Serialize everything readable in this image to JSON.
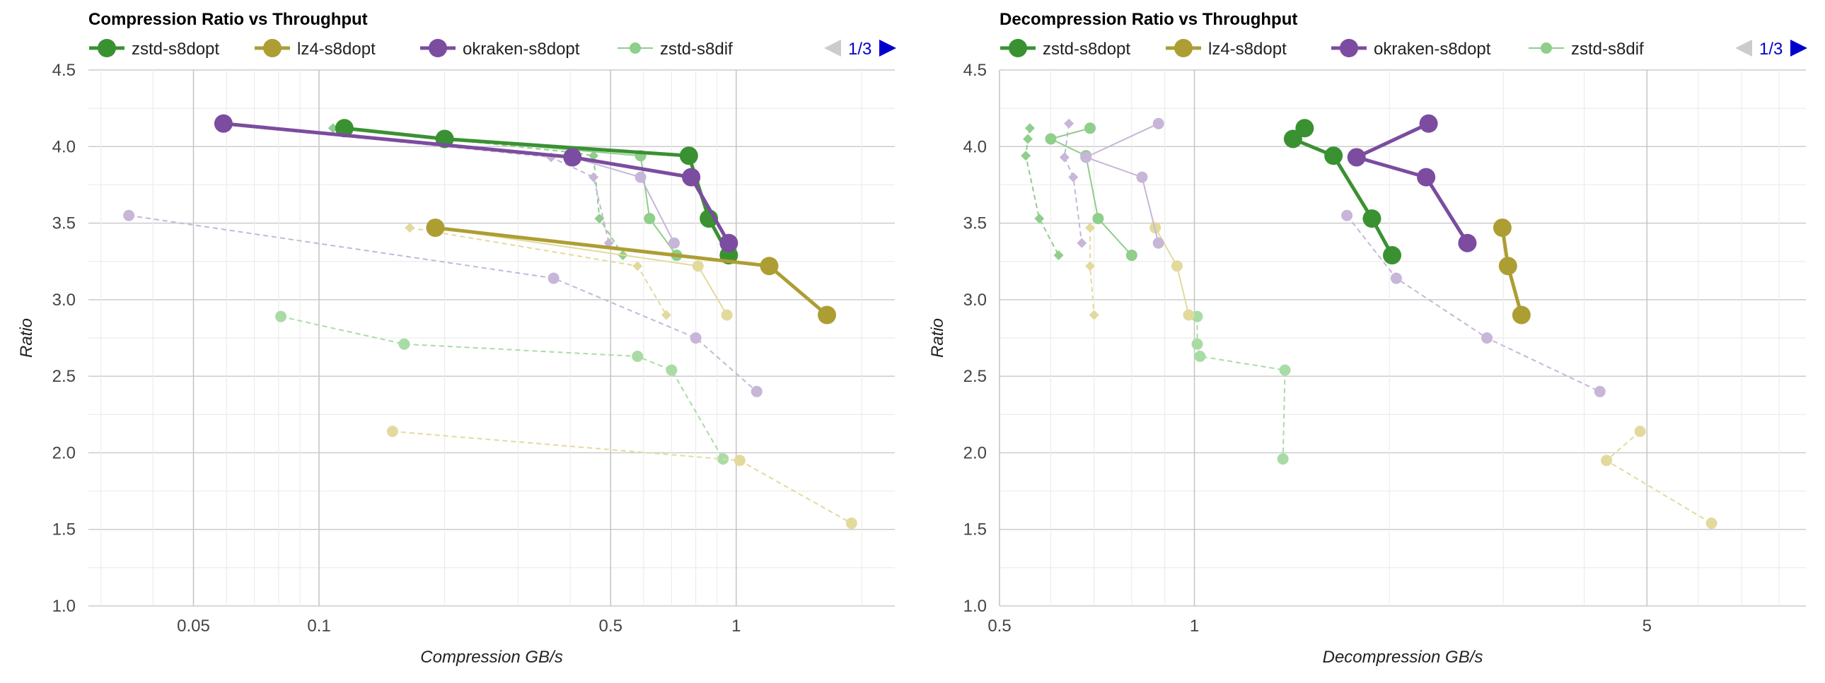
{
  "colors": {
    "zstd-s8dopt": "#3a9132",
    "lz4-s8dopt": "#ad9e34",
    "okraken-s8dopt": "#7b4c9f",
    "zstd-s8dif": "#8fce8b",
    "lz4-faint": "#e2da9c",
    "okraken-faint": "#c7b6d8",
    "zstd-faint": "#a9dca5",
    "pager-prev": "#cccccc",
    "pager-next": "#0000cc"
  },
  "chart_data": [
    {
      "type": "scatter",
      "title": "Compression Ratio vs Throughput",
      "xlabel": "Compression GB/s",
      "ylabel": "Ratio",
      "xscale": "log",
      "xlim": [
        0.028,
        2.4
      ],
      "ylim": [
        1.0,
        4.5
      ],
      "xticks": [
        "0.05",
        "0.1",
        "0.5",
        "1"
      ],
      "yticks": [
        "1.0",
        "1.5",
        "2.0",
        "2.5",
        "3.0",
        "3.5",
        "4.0",
        "4.5"
      ],
      "grid": true,
      "legend": "top",
      "legend_entries": [
        "zstd-s8dopt",
        "lz4-s8dopt",
        "okraken-s8dopt",
        "zstd-s8dif"
      ],
      "pager": "1/3",
      "series": [
        {
          "name": "zstd-s8dopt",
          "style": "main",
          "color_key": "zstd-s8dopt",
          "marker": "circle",
          "x": [
            0.115,
            0.2,
            0.77,
            0.86,
            0.96
          ],
          "y": [
            4.12,
            4.05,
            3.94,
            3.53,
            3.29
          ]
        },
        {
          "name": "lz4-s8dopt",
          "style": "main",
          "color_key": "lz4-s8dopt",
          "marker": "circle",
          "x": [
            0.19,
            1.2,
            1.65
          ],
          "y": [
            3.47,
            3.22,
            2.9
          ]
        },
        {
          "name": "okraken-s8dopt",
          "style": "main",
          "color_key": "okraken-s8dopt",
          "marker": "circle",
          "x": [
            0.059,
            0.405,
            0.78,
            0.96
          ],
          "y": [
            4.15,
            3.93,
            3.8,
            3.37
          ]
        },
        {
          "name": "zstd-s8dif",
          "style": "thin",
          "color_key": "zstd-s8dif",
          "marker": "circle",
          "x": [
            0.2,
            0.59,
            0.62,
            0.72
          ],
          "y": [
            4.05,
            3.94,
            3.53,
            3.29
          ]
        },
        {
          "style": "dashed",
          "color_key": "zstd-s8dif",
          "marker": "diamond",
          "x": [
            0.108,
            0.2,
            0.41,
            0.455,
            0.47,
            0.535
          ],
          "y": [
            4.12,
            4.05,
            3.96,
            3.94,
            3.53,
            3.29
          ]
        },
        {
          "style": "dashed",
          "color_key": "zstd-faint",
          "marker": "circle",
          "x": [
            0.081,
            0.16,
            0.58,
            0.7,
            0.93
          ],
          "y": [
            2.89,
            2.71,
            2.63,
            2.54,
            1.96
          ]
        },
        {
          "style": "thin",
          "color_key": "lz4-faint",
          "marker": "circle",
          "x": [
            0.19,
            0.81,
            0.95
          ],
          "y": [
            3.47,
            3.22,
            2.9
          ]
        },
        {
          "style": "dashed",
          "color_key": "lz4-faint",
          "marker": "diamond",
          "x": [
            0.165,
            0.58,
            0.68
          ],
          "y": [
            3.47,
            3.22,
            2.9
          ]
        },
        {
          "style": "dashed",
          "color_key": "lz4-faint",
          "marker": "circle",
          "x": [
            0.15,
            1.02,
            1.89
          ],
          "y": [
            2.14,
            1.95,
            1.54
          ]
        },
        {
          "style": "thin",
          "color_key": "okraken-faint",
          "marker": "circle",
          "x": [
            0.058,
            0.405,
            0.59,
            0.71
          ],
          "y": [
            4.15,
            3.93,
            3.8,
            3.37
          ]
        },
        {
          "style": "dashed",
          "color_key": "okraken-faint",
          "marker": "diamond",
          "x": [
            0.058,
            0.36,
            0.455,
            0.495
          ],
          "y": [
            4.15,
            3.93,
            3.8,
            3.37
          ]
        },
        {
          "style": "dashed",
          "color_key": "okraken-faint",
          "marker": "circle",
          "x": [
            0.035,
            0.365,
            0.8,
            1.12
          ],
          "y": [
            3.55,
            3.14,
            2.75,
            2.4
          ]
        }
      ]
    },
    {
      "type": "scatter",
      "title": "Decompression Ratio vs Throughput",
      "xlabel": "Decompression GB/s",
      "ylabel": "Ratio",
      "xscale": "log",
      "xlim": [
        0.5,
        8.8
      ],
      "ylim": [
        1.0,
        4.5
      ],
      "xticks": [
        "0.5",
        "1",
        "5"
      ],
      "yticks": [
        "1.0",
        "1.5",
        "2.0",
        "2.5",
        "3.0",
        "3.5",
        "4.0",
        "4.5"
      ],
      "grid": true,
      "legend": "top",
      "legend_entries": [
        "zstd-s8dopt",
        "lz4-s8dopt",
        "okraken-s8dopt",
        "zstd-s8dif"
      ],
      "pager": "1/3",
      "series": [
        {
          "name": "zstd-s8dopt",
          "style": "main",
          "color_key": "zstd-s8dopt",
          "marker": "circle",
          "x": [
            1.48,
            1.42,
            1.64,
            1.88,
            2.02
          ],
          "y": [
            4.12,
            4.05,
            3.94,
            3.53,
            3.29
          ]
        },
        {
          "name": "lz4-s8dopt",
          "style": "main",
          "color_key": "lz4-s8dopt",
          "marker": "circle",
          "x": [
            2.99,
            3.05,
            3.2
          ],
          "y": [
            3.47,
            3.22,
            2.9
          ]
        },
        {
          "name": "okraken-s8dopt",
          "style": "main",
          "color_key": "okraken-s8dopt",
          "marker": "circle",
          "x": [
            2.3,
            1.78,
            2.28,
            2.64
          ],
          "y": [
            4.15,
            3.93,
            3.8,
            3.37
          ]
        },
        {
          "name": "zstd-s8dif",
          "style": "thin",
          "color_key": "zstd-s8dif",
          "marker": "circle",
          "x": [
            0.69,
            0.6,
            0.68,
            0.71,
            0.8
          ],
          "y": [
            4.12,
            4.05,
            3.94,
            3.53,
            3.29
          ]
        },
        {
          "style": "dashed",
          "color_key": "zstd-s8dif",
          "marker": "diamond",
          "x": [
            0.557,
            0.553,
            0.549,
            0.576,
            0.617
          ],
          "y": [
            4.12,
            4.05,
            3.94,
            3.53,
            3.29
          ]
        },
        {
          "style": "dashed",
          "color_key": "zstd-faint",
          "marker": "circle",
          "x": [
            1.01,
            1.01,
            1.02,
            1.38,
            1.37
          ],
          "y": [
            2.89,
            2.71,
            2.63,
            2.54,
            1.96
          ]
        },
        {
          "style": "thin",
          "color_key": "lz4-faint",
          "marker": "circle",
          "x": [
            0.87,
            0.94,
            0.98
          ],
          "y": [
            3.47,
            3.22,
            2.9
          ]
        },
        {
          "style": "dashed",
          "color_key": "lz4-faint",
          "marker": "diamond",
          "x": [
            0.69,
            0.69,
            0.7
          ],
          "y": [
            3.47,
            3.22,
            2.9
          ]
        },
        {
          "style": "dashed",
          "color_key": "lz4-faint",
          "marker": "circle",
          "x": [
            4.88,
            4.33,
            6.29
          ],
          "y": [
            2.14,
            1.95,
            1.54
          ]
        },
        {
          "style": "thin",
          "color_key": "okraken-faint",
          "marker": "circle",
          "x": [
            0.88,
            0.68,
            0.83,
            0.88
          ],
          "y": [
            4.15,
            3.93,
            3.8,
            3.37
          ]
        },
        {
          "style": "dashed",
          "color_key": "okraken-faint",
          "marker": "diamond",
          "x": [
            0.64,
            0.63,
            0.65,
            0.67
          ],
          "y": [
            4.15,
            3.93,
            3.8,
            3.37
          ]
        },
        {
          "style": "dashed",
          "color_key": "okraken-faint",
          "marker": "circle",
          "x": [
            1.72,
            2.05,
            2.83,
            4.23
          ],
          "y": [
            3.55,
            3.14,
            2.75,
            2.4
          ]
        }
      ]
    }
  ]
}
